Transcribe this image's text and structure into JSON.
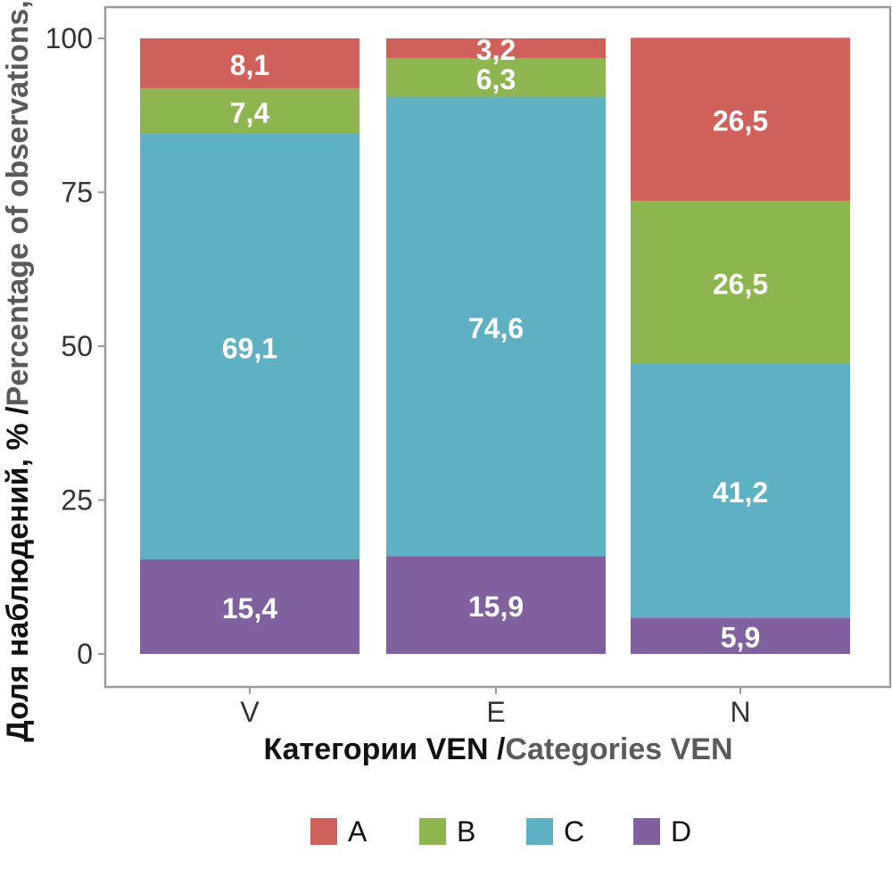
{
  "chart_data": {
    "type": "bar",
    "stacked": true,
    "orientation": "vertical",
    "categories": [
      "V",
      "E",
      "N"
    ],
    "series": [
      {
        "name": "A",
        "color": "#d0605a",
        "values": [
          8.1,
          3.2,
          26.5
        ]
      },
      {
        "name": "B",
        "color": "#8db550",
        "values": [
          7.4,
          6.3,
          26.5
        ]
      },
      {
        "name": "C",
        "color": "#5eb1c2",
        "values": [
          69.1,
          74.6,
          41.2
        ]
      },
      {
        "name": "D",
        "color": "#8160a0",
        "values": [
          15.4,
          15.9,
          5.9
        ]
      }
    ],
    "data_labels": [
      [
        "8,1",
        "3,2",
        "26,5"
      ],
      [
        "7,4",
        "6,3",
        "26,5"
      ],
      [
        "69,1",
        "74,6",
        "41,2"
      ],
      [
        "15,4",
        "15,9",
        "5,9"
      ]
    ],
    "ylim": [
      0,
      100
    ],
    "yticks": [
      "0",
      "25",
      "50",
      "75",
      "100"
    ],
    "ylabel_part1": "Доля наблюдений, % / ",
    "ylabel_part2": "Percentage of observations, %",
    "xlabel_part1": "Категории VEN / ",
    "xlabel_part2": "Categories VEN",
    "legend_position": "bottom",
    "grid": false
  }
}
